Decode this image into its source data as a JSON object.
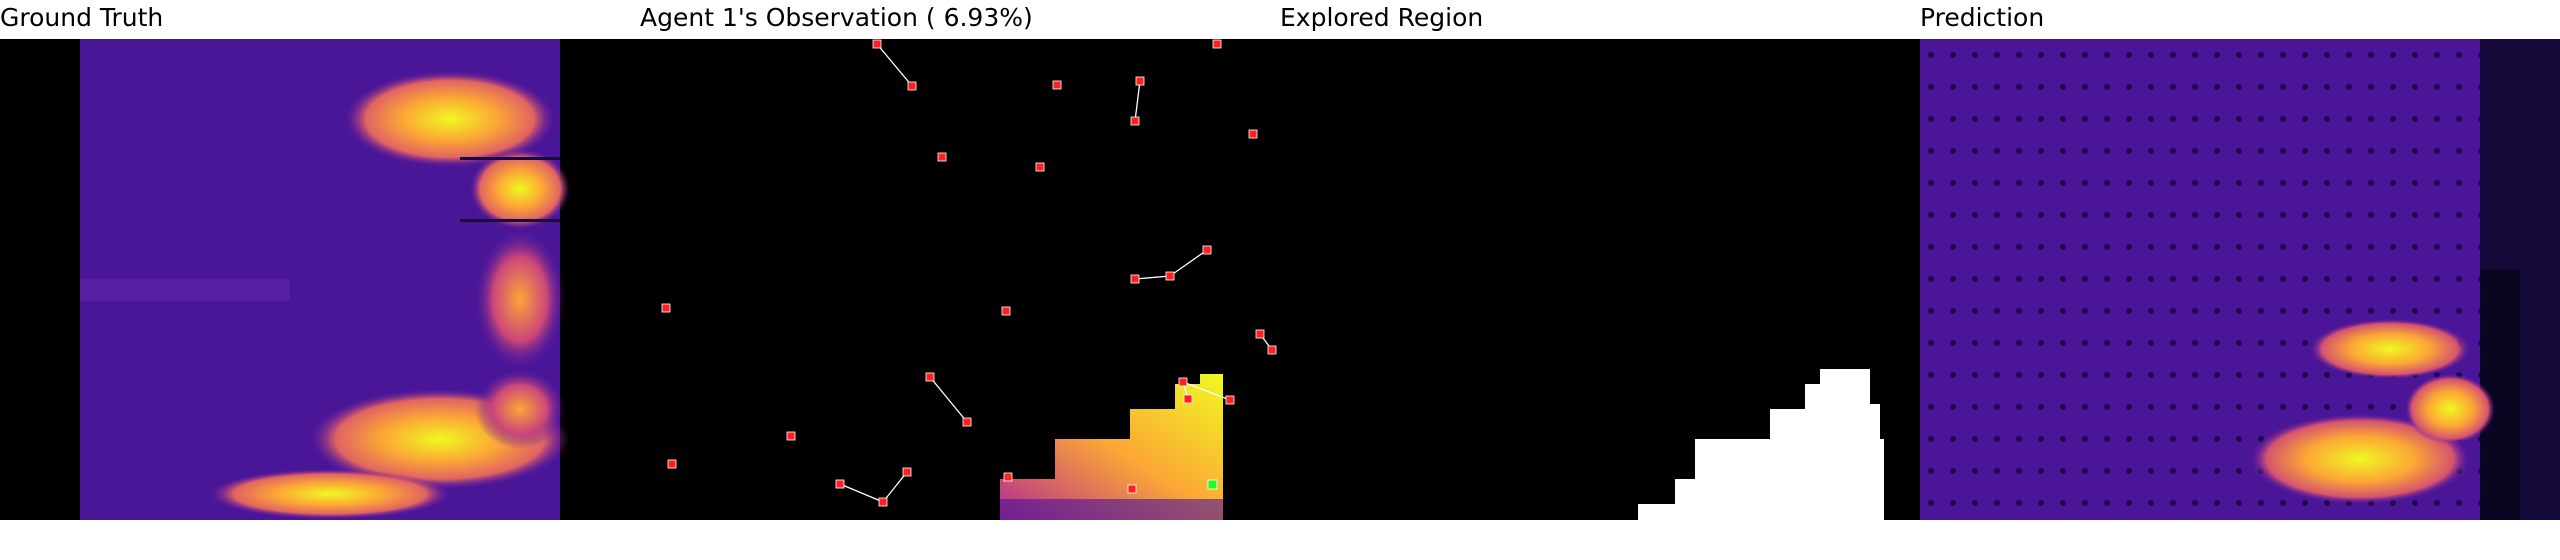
{
  "titles": {
    "ground_truth": "Ground Truth",
    "observation": "Agent 1's Observation ( 6.93%)",
    "explored": "Explored Region",
    "prediction": "Prediction"
  },
  "colors": {
    "background": "#000000",
    "plasma_low": "#2a0a6b",
    "plasma_mid": "#b12a90",
    "plasma_high": "#fca636",
    "plasma_peak": "#f0f921",
    "agent_marker": "#ff2020",
    "active_agent_marker": "#20ff20",
    "path_line": "#ffffff",
    "explored_fill": "#ffffff"
  }
}
